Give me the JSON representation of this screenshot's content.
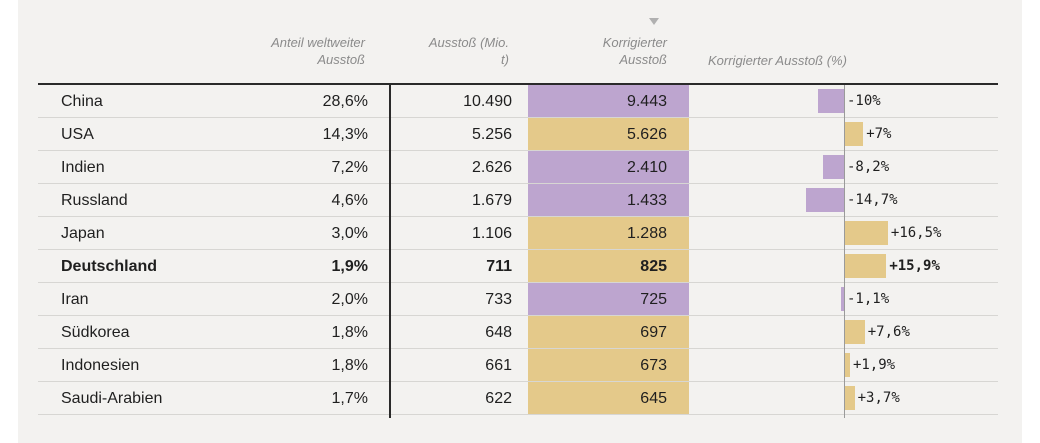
{
  "chart_data": {
    "type": "table",
    "columns": [
      "",
      "Anteil weltweiter Ausstoß",
      "Ausstoß (Mio. t)",
      "Korrigierter Ausstoß",
      "Korrigierter Ausstoß (%)"
    ],
    "column_header_lines": {
      "share": [
        "Anteil weltweiter",
        "Ausstoß"
      ],
      "emissions": [
        "Ausstoß (Mio.",
        "t)"
      ],
      "corrected": [
        "Korrigierter",
        "Ausstoß"
      ],
      "corrected_pct": "Korrigierter Ausstoß (%)"
    },
    "sorted_by": "Korrigierter Ausstoß",
    "colors": {
      "decrease": "#bda5cf",
      "increase": "#e4c98a"
    },
    "rows": [
      {
        "country": "China",
        "share": "28,6%",
        "emissions": "10.490",
        "corrected": "9.443",
        "change": -10.0,
        "change_label": "-10%",
        "bold": false
      },
      {
        "country": "USA",
        "share": "14,3%",
        "emissions": "5.256",
        "corrected": "5.626",
        "change": 7.0,
        "change_label": "+7%",
        "bold": false
      },
      {
        "country": "Indien",
        "share": "7,2%",
        "emissions": "2.626",
        "corrected": "2.410",
        "change": -8.2,
        "change_label": "-8,2%",
        "bold": false
      },
      {
        "country": "Russland",
        "share": "4,6%",
        "emissions": "1.679",
        "corrected": "1.433",
        "change": -14.7,
        "change_label": "-14,7%",
        "bold": false
      },
      {
        "country": "Japan",
        "share": "3,0%",
        "emissions": "1.106",
        "corrected": "1.288",
        "change": 16.5,
        "change_label": "+16,5%",
        "bold": false
      },
      {
        "country": "Deutschland",
        "share": "1,9%",
        "emissions": "711",
        "corrected": "825",
        "change": 15.9,
        "change_label": "+15,9%",
        "bold": true
      },
      {
        "country": "Iran",
        "share": "2,0%",
        "emissions": "733",
        "corrected": "725",
        "change": -1.1,
        "change_label": "-1,1%",
        "bold": false
      },
      {
        "country": "Südkorea",
        "share": "1,8%",
        "emissions": "648",
        "corrected": "697",
        "change": 7.6,
        "change_label": "+7,6%",
        "bold": false
      },
      {
        "country": "Indonesien",
        "share": "1,8%",
        "emissions": "661",
        "corrected": "673",
        "change": 1.9,
        "change_label": "+1,9%",
        "bold": false
      },
      {
        "country": "Saudi-Arabien",
        "share": "1,7%",
        "emissions": "622",
        "corrected": "645",
        "change": 3.7,
        "change_label": "+3,7%",
        "bold": false
      }
    ]
  }
}
